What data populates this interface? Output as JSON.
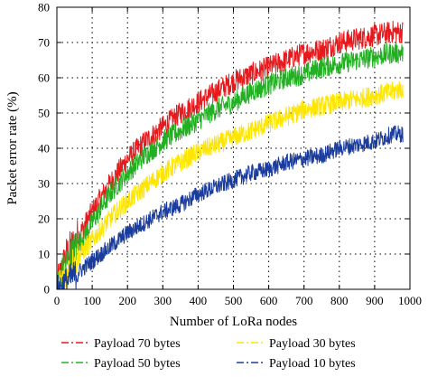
{
  "chart_data": {
    "type": "line",
    "title": "",
    "xlabel": "Number of LoRa nodes",
    "ylabel": "Packet error rate (%)",
    "xlim": [
      0,
      1000
    ],
    "ylim": [
      0,
      80
    ],
    "xticks": [
      0,
      100,
      200,
      300,
      400,
      500,
      600,
      700,
      800,
      900,
      1000
    ],
    "yticks": [
      0,
      10,
      20,
      30,
      40,
      50,
      60,
      70,
      80
    ],
    "grid": true,
    "legend_position": "bottom",
    "series": [
      {
        "name": "Payload 70 bytes",
        "color": "#e8191c",
        "noise": 3.2,
        "x": [
          0,
          25,
          50,
          100,
          150,
          200,
          250,
          300,
          350,
          400,
          450,
          500,
          550,
          600,
          650,
          700,
          750,
          800,
          850,
          900,
          950,
          980
        ],
        "y": [
          0,
          9,
          13,
          22,
          30,
          37,
          42,
          46,
          50,
          53,
          56,
          59,
          61,
          63,
          65,
          67,
          68,
          70,
          71,
          72,
          73,
          73
        ]
      },
      {
        "name": "Payload 50 bytes",
        "color": "#22b022",
        "noise": 3.0,
        "x": [
          0,
          25,
          50,
          100,
          150,
          200,
          250,
          300,
          350,
          400,
          450,
          500,
          550,
          600,
          650,
          700,
          750,
          800,
          850,
          900,
          950,
          980
        ],
        "y": [
          0,
          7,
          11,
          19,
          27,
          33,
          38,
          42,
          45,
          48,
          51,
          53,
          56,
          58,
          60,
          61,
          63,
          64,
          65,
          66,
          67,
          67
        ]
      },
      {
        "name": "Payload 30 bytes",
        "color": "#ffe600",
        "noise": 2.8,
        "x": [
          0,
          25,
          50,
          100,
          150,
          200,
          250,
          300,
          350,
          400,
          450,
          500,
          550,
          600,
          650,
          700,
          750,
          800,
          850,
          900,
          950,
          980
        ],
        "y": [
          0,
          4,
          8,
          14,
          20,
          25,
          29,
          33,
          36,
          39,
          41,
          43,
          45,
          47,
          49,
          51,
          52,
          53,
          54,
          55,
          56,
          57
        ]
      },
      {
        "name": "Payload 10 bytes",
        "color": "#1a3c9c",
        "noise": 2.4,
        "x": [
          0,
          25,
          50,
          100,
          150,
          200,
          250,
          300,
          350,
          400,
          450,
          500,
          550,
          600,
          650,
          700,
          750,
          800,
          850,
          900,
          950,
          980
        ],
        "y": [
          0,
          2,
          4,
          8,
          12,
          16,
          19,
          22,
          24,
          27,
          29,
          31,
          33,
          34,
          36,
          37,
          38,
          40,
          41,
          42,
          44,
          44
        ]
      }
    ]
  }
}
